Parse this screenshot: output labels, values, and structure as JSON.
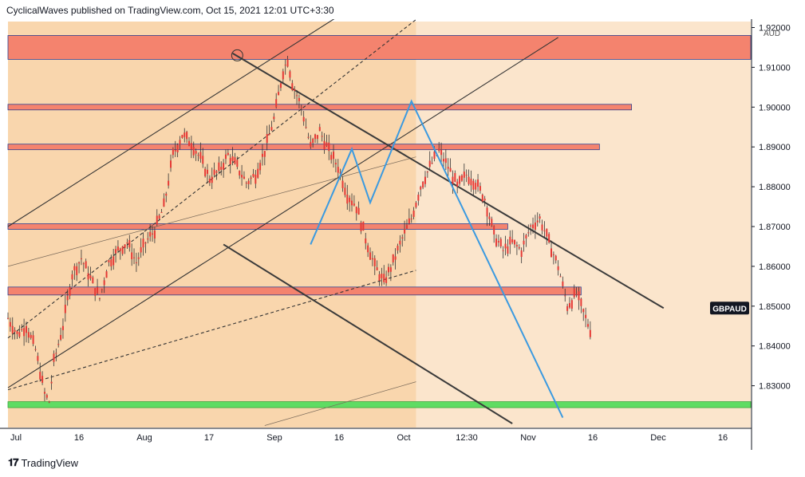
{
  "header": {
    "text": "CyclicalWaves published on TradingView.com, Oct 15, 2021 12:01 UTC+3:30"
  },
  "footer": {
    "brand": "TradingView",
    "logo_icon": "tradingview-logo-icon"
  },
  "colors": {
    "background": "#fbe5cc",
    "channel_fill": "#f9d6ad",
    "zone_red": "#f4836e",
    "zone_green": "#5fdc63",
    "candle_red": "#e53935",
    "blue_line": "#3b9ae0",
    "trend_line": "#333333"
  },
  "chart_data": {
    "type": "candlestick",
    "symbol": "GBPAUD",
    "currency": "AUD",
    "x_tick_labels": [
      "Jul",
      "16",
      "Aug",
      "17",
      "Sep",
      "16",
      "Oct",
      "12:30",
      "Nov",
      "16",
      "Dec",
      "16"
    ],
    "y_tick_labels": [
      "1.92000",
      "1.91000",
      "1.90000",
      "1.89000",
      "1.88000",
      "1.87000",
      "1.86000",
      "1.85000",
      "1.84000",
      "1.83000"
    ],
    "ylim": [
      1.8195,
      1.9215
    ],
    "x_index_range": [
      0,
      162
    ],
    "last_price_label": "GBPAUD",
    "last_price": 1.8495,
    "close_path": [
      [
        0,
        1.847
      ],
      [
        2,
        1.843
      ],
      [
        4,
        1.845
      ],
      [
        6,
        1.839
      ],
      [
        8,
        1.828
      ],
      [
        9,
        1.826
      ],
      [
        10,
        1.836
      ],
      [
        12,
        1.845
      ],
      [
        14,
        1.858
      ],
      [
        16,
        1.862
      ],
      [
        18,
        1.857
      ],
      [
        20,
        1.852
      ],
      [
        22,
        1.861
      ],
      [
        24,
        1.864
      ],
      [
        26,
        1.866
      ],
      [
        28,
        1.861
      ],
      [
        30,
        1.866
      ],
      [
        32,
        1.869
      ],
      [
        34,
        1.875
      ],
      [
        36,
        1.888
      ],
      [
        38,
        1.893
      ],
      [
        40,
        1.891
      ],
      [
        42,
        1.887
      ],
      [
        44,
        1.882
      ],
      [
        46,
        1.884
      ],
      [
        48,
        1.888
      ],
      [
        50,
        1.885
      ],
      [
        52,
        1.881
      ],
      [
        54,
        1.883
      ],
      [
        56,
        1.889
      ],
      [
        58,
        1.897
      ],
      [
        60,
        1.909
      ],
      [
        61,
        1.912
      ],
      [
        62,
        1.906
      ],
      [
        64,
        1.9
      ],
      [
        66,
        1.89
      ],
      [
        68,
        1.894
      ],
      [
        70,
        1.889
      ],
      [
        72,
        1.885
      ],
      [
        74,
        1.878
      ],
      [
        76,
        1.875
      ],
      [
        78,
        1.867
      ],
      [
        80,
        1.86
      ],
      [
        82,
        1.856
      ],
      [
        84,
        1.861
      ],
      [
        86,
        1.867
      ],
      [
        88,
        1.872
      ],
      [
        90,
        1.88
      ],
      [
        92,
        1.885
      ],
      [
        94,
        1.889
      ],
      [
        96,
        1.885
      ],
      [
        98,
        1.88
      ],
      [
        100,
        1.883
      ],
      [
        102,
        1.881
      ],
      [
        104,
        1.877
      ],
      [
        106,
        1.868
      ],
      [
        108,
        1.864
      ],
      [
        110,
        1.866
      ],
      [
        112,
        1.864
      ],
      [
        114,
        1.87
      ],
      [
        116,
        1.872
      ],
      [
        118,
        1.866
      ],
      [
        120,
        1.86
      ],
      [
        122,
        1.85
      ],
      [
        124,
        1.853
      ],
      [
        126,
        1.847
      ],
      [
        127,
        1.844
      ]
    ],
    "zones": [
      {
        "type": "resistance",
        "from": 1.912,
        "to": 1.918,
        "x_end": 162
      },
      {
        "type": "resistance",
        "from": 1.8993,
        "to": 1.9007,
        "x_end": 136
      },
      {
        "type": "resistance",
        "from": 1.8893,
        "to": 1.8907,
        "x_end": 129
      },
      {
        "type": "resistance",
        "from": 1.8693,
        "to": 1.8707,
        "x_end": 109
      },
      {
        "type": "resistance",
        "from": 1.8528,
        "to": 1.8548,
        "x_end": 125
      },
      {
        "type": "support",
        "from": 1.8245,
        "to": 1.826,
        "x_end": 162
      }
    ],
    "channel": {
      "x_from": 0,
      "x_to": 89
    },
    "trend_lines": [
      {
        "style": "solid",
        "p1": [
          0,
          1.87
        ],
        "p2": [
          60,
          1.914
        ],
        "extend_to": 85
      },
      {
        "style": "solid",
        "p1": [
          0,
          1.8295
        ],
        "p2": [
          60,
          1.8735
        ],
        "extend_to": 120
      },
      {
        "style": "dashed",
        "p1": [
          0,
          1.842
        ],
        "p2": [
          89,
          1.922
        ]
      },
      {
        "style": "dashed",
        "p1": [
          0,
          1.829
        ],
        "p2": [
          89,
          1.859
        ]
      },
      {
        "style": "thin",
        "p1": [
          0,
          1.86
        ],
        "p2": [
          89,
          1.8875
        ]
      },
      {
        "style": "thin",
        "p1": [
          56,
          1.82
        ],
        "p2": [
          89,
          1.831
        ]
      },
      {
        "style": "solid",
        "p1": [
          47,
          1.8655
        ],
        "p2": [
          110,
          1.8205
        ]
      },
      {
        "style": "solid",
        "p1": [
          49,
          1.9135
        ],
        "p2": [
          143,
          1.8495
        ]
      }
    ],
    "projection": [
      [
        66,
        1.8655
      ],
      [
        75,
        1.8895
      ],
      [
        79,
        1.876
      ],
      [
        88,
        1.9015
      ],
      [
        121,
        1.822
      ]
    ],
    "marker_circle": [
      50,
      1.913
    ]
  }
}
